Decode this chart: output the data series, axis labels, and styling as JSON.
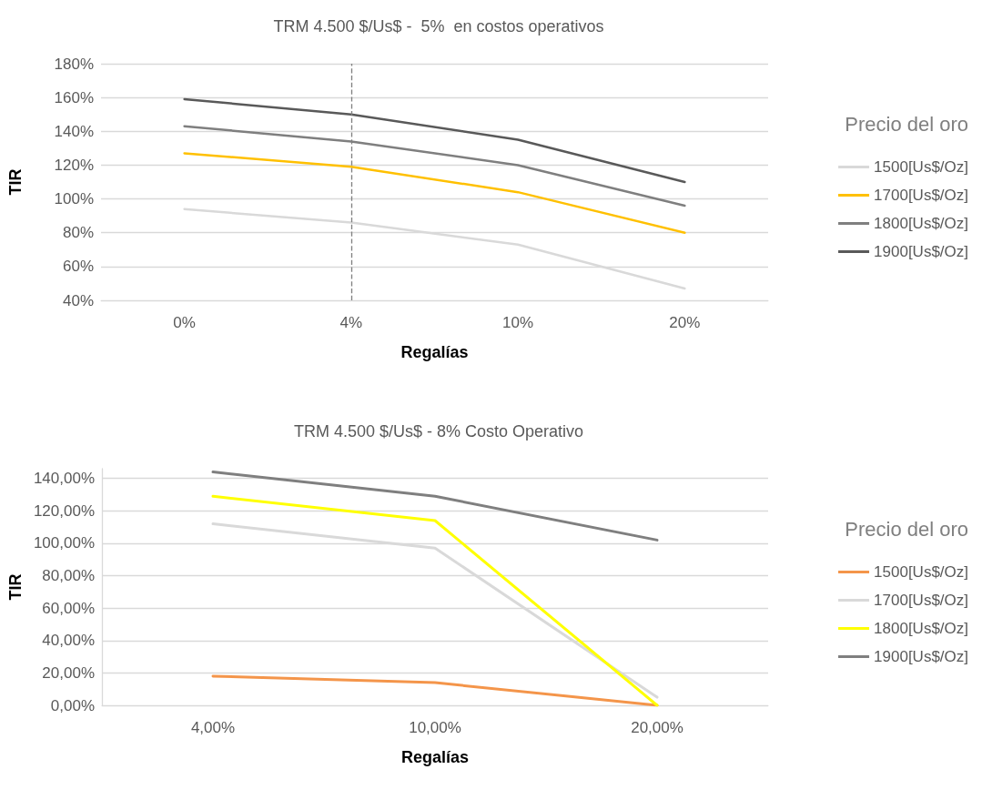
{
  "chart_data": [
    {
      "type": "line",
      "title": "TRM 4.500 $/Us$ -  5%  en costos operativos",
      "xlabel": "Regalías",
      "ylabel": "TIR",
      "legend_title": "Precio del oro",
      "categories": [
        "0%",
        "4%",
        "10%",
        "20%"
      ],
      "series": [
        {
          "name": "1500[Us$/Oz]",
          "color": "#d9d9d9",
          "values": [
            94,
            86,
            73,
            47
          ]
        },
        {
          "name": "1700[Us$/Oz]",
          "color": "#ffc000",
          "values": [
            127,
            119,
            104,
            80
          ]
        },
        {
          "name": "1800[Us$/Oz]",
          "color": "#7f7f7f",
          "values": [
            143,
            134,
            120,
            96
          ]
        },
        {
          "name": "1900[Us$/Oz]",
          "color": "#595959",
          "values": [
            159,
            150,
            135,
            110
          ]
        }
      ],
      "ylim": [
        40,
        180
      ],
      "yticks": [
        {
          "value": 40,
          "label": "40%"
        },
        {
          "value": 60,
          "label": "60%"
        },
        {
          "value": 80,
          "label": "80%"
        },
        {
          "value": 100,
          "label": "100%"
        },
        {
          "value": 120,
          "label": "120%"
        },
        {
          "value": 140,
          "label": "140%"
        },
        {
          "value": 160,
          "label": "160%"
        },
        {
          "value": 180,
          "label": "180%"
        }
      ],
      "ref_lines": [
        {
          "axis": "x",
          "value": "4%",
          "color": "#7f7f7f",
          "line_style": "dashed"
        }
      ],
      "grid": "y",
      "legend": "right",
      "marker": "none",
      "line_style": "solid"
    },
    {
      "type": "line",
      "title": "TRM 4.500 $/Us$ - 8% Costo Operativo",
      "xlabel": "Regalías",
      "ylabel": "TIR",
      "legend_title": "Precio del oro",
      "categories": [
        "4,00%",
        "10,00%",
        "20,00%"
      ],
      "series": [
        {
          "name": "1500[Us$/Oz]",
          "color": "#f4954a",
          "values": [
            18,
            14,
            0
          ]
        },
        {
          "name": "1700[Us$/Oz]",
          "color": "#d9d9d9",
          "values": [
            112,
            97,
            5
          ]
        },
        {
          "name": "1800[Us$/Oz]",
          "color": "#ffff00",
          "values": [
            129,
            114,
            0
          ]
        },
        {
          "name": "1900[Us$/Oz]",
          "color": "#7f7f7f",
          "values": [
            144,
            129,
            102
          ]
        }
      ],
      "ylim": [
        0,
        146
      ],
      "yticks": [
        {
          "value": 0,
          "label": "0,00%"
        },
        {
          "value": 20,
          "label": "20,00%"
        },
        {
          "value": 40,
          "label": "40,00%"
        },
        {
          "value": 60,
          "label": "60,00%"
        },
        {
          "value": 80,
          "label": "80,00%"
        },
        {
          "value": 100,
          "label": "100,00%"
        },
        {
          "value": 120,
          "label": "120,00%"
        },
        {
          "value": 140,
          "label": "140,00%"
        }
      ],
      "grid": "y",
      "legend": "right",
      "marker": "none",
      "line_style": "solid"
    }
  ]
}
